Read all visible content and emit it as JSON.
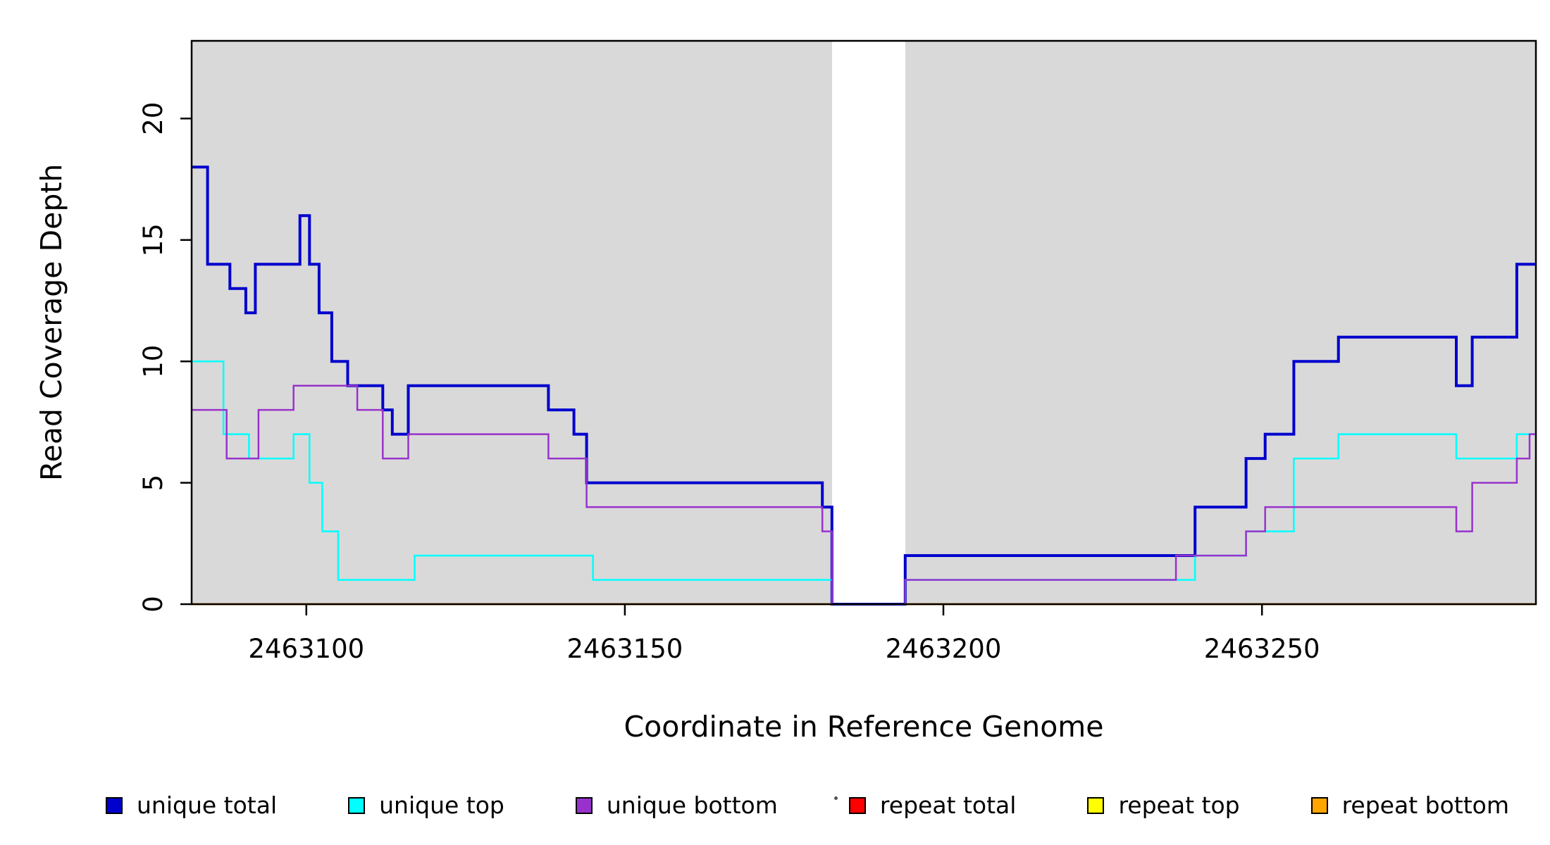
{
  "chart_data": {
    "type": "line",
    "subtype": "step",
    "title": "",
    "xlabel": "Coordinate in Reference Genome",
    "ylabel": "Read Coverage Depth",
    "x_range": [
      2463082,
      2463293
    ],
    "y_range": [
      0,
      23.2
    ],
    "x_ticks": [
      2463100,
      2463150,
      2463200,
      2463250
    ],
    "y_ticks": [
      0,
      5,
      10,
      15,
      20
    ],
    "grid": false,
    "legend_position": "bottom",
    "plot_background": "#d9d9d9",
    "gap_region": [
      2463182.5,
      2463194
    ],
    "background_regions": [
      [
        2463082,
        2463182.5
      ],
      [
        2463194,
        2463293
      ]
    ],
    "series": [
      {
        "name": "unique total",
        "color": "#0000cd",
        "lw": 4,
        "segments": [
          [
            [
              2463082,
              18
            ],
            [
              2463084.5,
              14
            ],
            [
              2463088,
              13
            ],
            [
              2463090.5,
              12
            ],
            [
              2463092,
              14
            ],
            [
              2463099,
              16
            ],
            [
              2463100.5,
              14
            ],
            [
              2463102,
              12
            ],
            [
              2463104,
              10
            ],
            [
              2463106.5,
              9
            ],
            [
              2463112,
              8
            ],
            [
              2463113.5,
              7
            ],
            [
              2463116,
              9
            ],
            [
              2463138,
              8
            ],
            [
              2463142,
              7
            ],
            [
              2463144,
              5
            ],
            [
              2463181,
              4
            ],
            [
              2463182.5,
              0
            ],
            [
              2463194,
              2
            ],
            [
              2463239.5,
              4
            ],
            [
              2463247.5,
              6
            ],
            [
              2463250.5,
              7
            ],
            [
              2463255,
              10
            ],
            [
              2463262,
              11
            ],
            [
              2463280.5,
              9
            ],
            [
              2463283,
              11
            ],
            [
              2463290,
              14
            ],
            [
              2463293,
              14
            ]
          ]
        ]
      },
      {
        "name": "unique top",
        "color": "#00ffff",
        "lw": 2.5,
        "segments": [
          [
            [
              2463082,
              10
            ],
            [
              2463087,
              7
            ],
            [
              2463091,
              6
            ],
            [
              2463098,
              7
            ],
            [
              2463100.5,
              5
            ],
            [
              2463102.5,
              3
            ],
            [
              2463105,
              1
            ],
            [
              2463117,
              2
            ],
            [
              2463145,
              1
            ],
            [
              2463182.5,
              0
            ],
            [
              2463194,
              1
            ],
            [
              2463239.5,
              2
            ],
            [
              2463247.5,
              3
            ],
            [
              2463255,
              6
            ],
            [
              2463262,
              7
            ],
            [
              2463280.5,
              6
            ],
            [
              2463290,
              7
            ],
            [
              2463293,
              7
            ]
          ]
        ]
      },
      {
        "name": "unique bottom",
        "color": "#9932cc",
        "lw": 2.5,
        "segments": [
          [
            [
              2463082,
              8
            ],
            [
              2463087.5,
              6
            ],
            [
              2463092.5,
              8
            ],
            [
              2463098,
              9
            ],
            [
              2463108,
              8
            ],
            [
              2463112,
              6
            ],
            [
              2463116,
              7
            ],
            [
              2463138,
              6
            ],
            [
              2463144,
              4
            ],
            [
              2463181,
              3
            ],
            [
              2463182.5,
              0
            ],
            [
              2463194,
              1
            ],
            [
              2463236.5,
              2
            ],
            [
              2463247.5,
              3
            ],
            [
              2463250.5,
              4
            ],
            [
              2463280.5,
              3
            ],
            [
              2463283,
              5
            ],
            [
              2463290,
              6
            ],
            [
              2463292,
              7
            ],
            [
              2463293,
              7
            ]
          ]
        ]
      },
      {
        "name": "repeat total",
        "color": "#ff0000",
        "lw": 3,
        "segments": [
          [
            [
              2463082,
              0
            ],
            [
              2463182.5,
              0
            ]
          ],
          [
            [
              2463194,
              0
            ],
            [
              2463293,
              0
            ]
          ]
        ]
      },
      {
        "name": "repeat top",
        "color": "#ffff00",
        "lw": 3,
        "segments": [
          [
            [
              2463082,
              0
            ],
            [
              2463182.5,
              0
            ]
          ],
          [
            [
              2463194,
              0
            ],
            [
              2463293,
              0
            ]
          ]
        ]
      },
      {
        "name": "repeat bottom",
        "color": "#ffa500",
        "lw": 3,
        "segments": [
          [
            [
              2463082,
              0
            ],
            [
              2463182.5,
              0
            ]
          ],
          [
            [
              2463194,
              0
            ],
            [
              2463293,
              0
            ]
          ]
        ]
      }
    ]
  }
}
